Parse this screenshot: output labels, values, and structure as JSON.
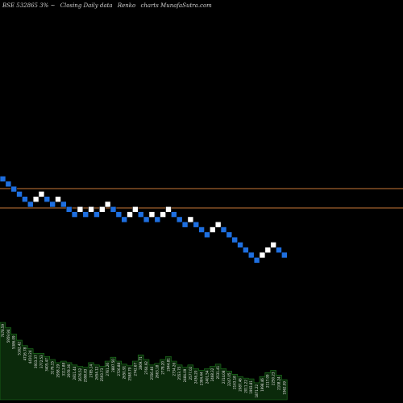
{
  "header": {
    "exchange_code": "BSE 532865 3%",
    "separator": "~",
    "subtitle": "Closing Daily data",
    "chart_kind": "Renko",
    "site": "charts MunafaSutra.com"
  },
  "colors": {
    "background": "#000000",
    "up_brick": "#ffffff",
    "down_brick": "#1e6fe0",
    "brick_outline": "#000000",
    "level_line": "#c87838",
    "volume_fill": "#0b2a0b",
    "volume_outline": "#1f7a1f"
  },
  "chart_data": {
    "type": "renko",
    "brick_size_percent": 3,
    "directions": [
      "down",
      "down",
      "down",
      "down",
      "down",
      "down",
      "up",
      "up",
      "down",
      "down",
      "up",
      "down",
      "down",
      "down",
      "up",
      "down",
      "up",
      "down",
      "up",
      "up",
      "down",
      "down",
      "down",
      "up",
      "up",
      "down",
      "down",
      "up",
      "down",
      "up",
      "up",
      "down",
      "down",
      "down",
      "up",
      "down",
      "down",
      "down",
      "up",
      "up",
      "down",
      "down",
      "down",
      "down",
      "down",
      "down",
      "down",
      "up",
      "up",
      "up",
      "down",
      "down"
    ],
    "levels": [
      1,
      0.74
    ],
    "volume_labels": [
      "7478.59",
      "5959.94",
      "5386.09",
      "5162.42",
      "4726.78",
      "4410.24",
      "3933.37",
      "3772.53",
      "3405.47",
      "3176.15",
      "2958.29",
      "3112.88",
      "2978.36",
      "2811.44",
      "2676.52",
      "2598.83",
      "2785.14",
      "2654.12",
      "2593.73",
      "2761.26",
      "2887.50",
      "2726.88",
      "2650.91",
      "2598.79",
      "2742.67",
      "2869.71",
      "2764.92",
      "2556.46",
      "2663.18",
      "2778.20",
      "2944.81",
      "2734.26",
      "2553.75",
      "2484.09",
      "2577.02",
      "2436.20",
      "2384.44",
      "2401.54",
      "2468.32",
      "2531.41",
      "2314.08",
      "2247.05",
      "2163.18",
      "2087.46",
      "2011.22",
      "1993.81",
      "1871.22",
      "1998.46",
      "2117.09",
      "2250.23",
      "2108.24",
      "1962.09"
    ],
    "volume_heights": [
      1,
      0.93,
      0.85,
      0.77,
      0.7,
      0.66,
      0.6,
      0.6,
      0.56,
      0.52,
      0.48,
      0.5,
      0.48,
      0.45,
      0.43,
      0.42,
      0.48,
      0.45,
      0.43,
      0.5,
      0.55,
      0.5,
      0.46,
      0.44,
      0.5,
      0.58,
      0.52,
      0.45,
      0.47,
      0.52,
      0.56,
      0.5,
      0.45,
      0.42,
      0.45,
      0.4,
      0.38,
      0.4,
      0.43,
      0.46,
      0.4,
      0.37,
      0.33,
      0.3,
      0.28,
      0.27,
      0.22,
      0.3,
      0.35,
      0.38,
      0.32,
      0.26
    ]
  }
}
